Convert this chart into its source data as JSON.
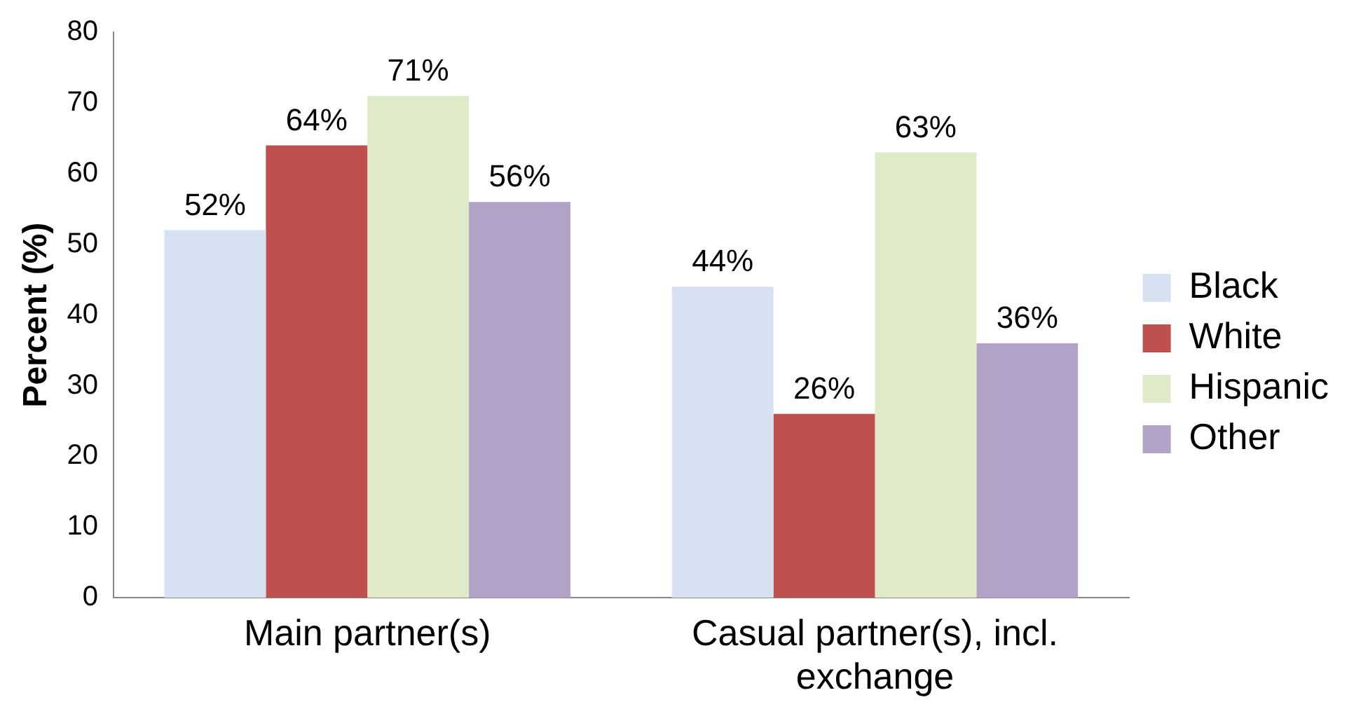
{
  "chart_data": {
    "type": "bar",
    "ylabel": "Percent (%)",
    "categories": [
      "Main partner(s)",
      "Casual partner(s), incl. exchange"
    ],
    "series": [
      {
        "name": "Black",
        "color": "#d6e2f1",
        "values": [
          52,
          44
        ],
        "value_labels": [
          "52%",
          "44%"
        ]
      },
      {
        "name": "White",
        "color": "#c0504d",
        "values": [
          64,
          26
        ],
        "value_labels": [
          "64%",
          "26%"
        ]
      },
      {
        "name": "Hispanic",
        "color": "#dfeac8",
        "values": [
          71,
          63
        ],
        "value_labels": [
          "71%",
          "63%"
        ]
      },
      {
        "name": "Other",
        "color": "#b3a2c7",
        "values": [
          56,
          36
        ],
        "value_labels": [
          "56%",
          "36%"
        ]
      }
    ],
    "ylim": [
      0,
      80
    ],
    "yticks": [
      0,
      10,
      20,
      30,
      40,
      50,
      60,
      70,
      80
    ],
    "grid": false,
    "legend": "right"
  }
}
